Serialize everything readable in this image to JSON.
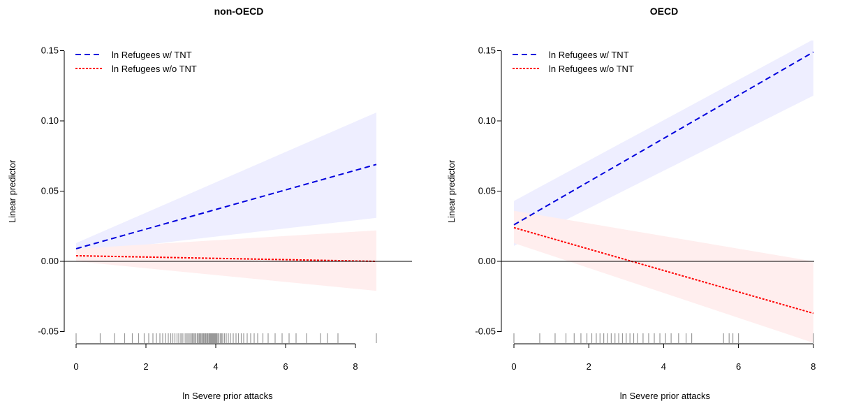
{
  "chart_data": [
    {
      "type": "line",
      "title": "non-OECD",
      "xlabel": "ln Severe prior attacks",
      "ylabel": "Linear predictor",
      "xlim": [
        0,
        8.6
      ],
      "ylim": [
        -0.05,
        0.15
      ],
      "xticks": [
        "0",
        "2",
        "4",
        "6",
        "8"
      ],
      "yticks": [
        "-0.05",
        "0.00",
        "0.05",
        "0.10",
        "0.15"
      ],
      "legend_position": "top-left",
      "reference_line_y": 0,
      "series": [
        {
          "name": "ln Refugees w/ TNT",
          "color": "#0000dd",
          "style": "dashed",
          "x": [
            0,
            8.6
          ],
          "y": [
            0.009,
            0.069
          ],
          "band": {
            "x": [
              0,
              8.6
            ],
            "lower": [
              0.006,
              0.031
            ],
            "upper": [
              0.013,
              0.106
            ],
            "color": "#eeeeff"
          }
        },
        {
          "name": "ln Refugees w/o TNT",
          "color": "#ff0000",
          "style": "dotted",
          "x": [
            0,
            8.6
          ],
          "y": [
            0.004,
            0.0
          ],
          "band": {
            "x": [
              0,
              8.6
            ],
            "lower": [
              0.0,
              -0.021
            ],
            "upper": [
              0.009,
              0.022
            ],
            "color": "#ffeeee"
          }
        }
      ],
      "rug_x": [
        0,
        0.69,
        1.1,
        1.39,
        1.61,
        1.79,
        1.95,
        2.08,
        2.2,
        2.3,
        2.4,
        2.48,
        2.56,
        2.64,
        2.71,
        2.77,
        2.83,
        2.89,
        2.94,
        3.0,
        3.04,
        3.09,
        3.14,
        3.18,
        3.22,
        3.26,
        3.3,
        3.33,
        3.37,
        3.4,
        3.43,
        3.47,
        3.5,
        3.53,
        3.56,
        3.58,
        3.61,
        3.64,
        3.66,
        3.69,
        3.71,
        3.74,
        3.76,
        3.78,
        3.81,
        3.83,
        3.85,
        3.87,
        3.89,
        3.91,
        3.93,
        3.95,
        3.97,
        3.99,
        4.01,
        4.03,
        4.06,
        4.09,
        4.13,
        4.17,
        4.2,
        4.25,
        4.3,
        4.36,
        4.42,
        4.5,
        4.58,
        4.65,
        4.73,
        4.8,
        4.9,
        5.0,
        5.1,
        5.2,
        5.35,
        5.5,
        5.7,
        5.9,
        6.1,
        6.3,
        6.6,
        7.0,
        7.2,
        7.5,
        8.6
      ]
    },
    {
      "type": "line",
      "title": "OECD",
      "xlabel": "ln Severe prior attacks",
      "ylabel": "Linear predictor",
      "xlim": [
        0,
        8
      ],
      "ylim": [
        -0.05,
        0.15
      ],
      "xticks": [
        "0",
        "2",
        "4",
        "6",
        "8"
      ],
      "yticks": [
        "-0.05",
        "0.00",
        "0.05",
        "0.10",
        "0.15"
      ],
      "legend_position": "top-left",
      "reference_line_y": 0,
      "series": [
        {
          "name": "ln Refugees w/ TNT",
          "color": "#0000dd",
          "style": "dashed",
          "x": [
            0,
            8
          ],
          "y": [
            0.026,
            0.149
          ],
          "band": {
            "x": [
              0,
              8
            ],
            "lower": [
              0.011,
              0.118
            ],
            "upper": [
              0.043,
              0.158
            ],
            "color": "#eeeeff"
          }
        },
        {
          "name": "ln Refugees w/o TNT",
          "color": "#ff0000",
          "style": "dotted",
          "x": [
            0,
            8
          ],
          "y": [
            0.024,
            -0.037
          ],
          "band": {
            "x": [
              0,
              8
            ],
            "lower": [
              0.013,
              -0.058
            ],
            "upper": [
              0.036,
              0.0
            ],
            "color": "#ffeeee"
          }
        }
      ],
      "rug_x": [
        0,
        0.69,
        1.1,
        1.39,
        1.61,
        1.79,
        1.95,
        2.08,
        2.2,
        2.3,
        2.4,
        2.5,
        2.6,
        2.7,
        2.8,
        2.9,
        3.0,
        3.1,
        3.2,
        3.3,
        3.45,
        3.6,
        3.75,
        3.9,
        4.05,
        4.2,
        4.4,
        4.6,
        4.75,
        5.6,
        5.75,
        5.85,
        6.0,
        8.0
      ]
    }
  ]
}
